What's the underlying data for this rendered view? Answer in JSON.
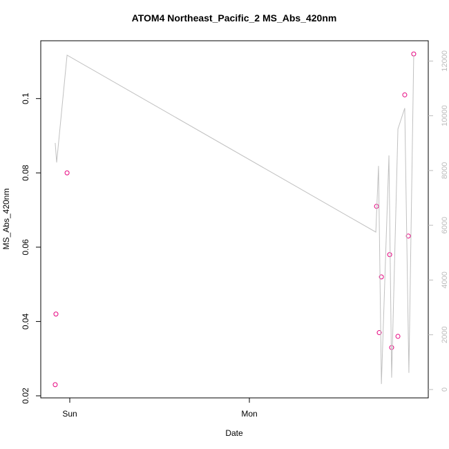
{
  "chart_data": {
    "type": "scatter",
    "title": "ATOM4 Northeast_Pacific_2 MS_Abs_420nm",
    "xlabel": "Date",
    "ylabel": "MS_Abs_420nm",
    "xlim": [
      -0.1615,
      1.996
    ],
    "xticks": [
      {
        "value": 0,
        "label": "Sun"
      },
      {
        "value": 1,
        "label": "Mon"
      }
    ],
    "ylim": [
      0.01944,
      0.11556
    ],
    "yticks": [
      0.02,
      0.04,
      0.06,
      0.08,
      0.1
    ],
    "y2lim": [
      -305,
      12740
    ],
    "y2ticks": [
      0,
      2000,
      4000,
      6000,
      8000,
      10000,
      12000
    ],
    "series": [
      {
        "type": "scatter",
        "color": "#e6007e",
        "x": [
          -0.081,
          -0.077,
          -0.015,
          1.708,
          1.723,
          1.735,
          1.781,
          1.792,
          1.827,
          1.865,
          1.885,
          1.915
        ],
        "values": [
          0.023,
          0.042,
          0.08,
          0.071,
          0.037,
          0.052,
          0.058,
          0.033,
          0.036,
          0.101,
          0.063,
          0.112
        ]
      },
      {
        "type": "line",
        "color": "#c0c0c0",
        "axis": "y2",
        "x": [
          -0.081,
          -0.073,
          -0.015,
          1.704,
          1.719,
          1.735,
          1.777,
          1.792,
          1.827,
          1.865,
          1.888,
          1.915
        ],
        "values": [
          9008,
          8295,
          12214,
          5751,
          8168,
          204,
          8550,
          433,
          9517,
          10280,
          611,
          12214
        ]
      }
    ]
  }
}
